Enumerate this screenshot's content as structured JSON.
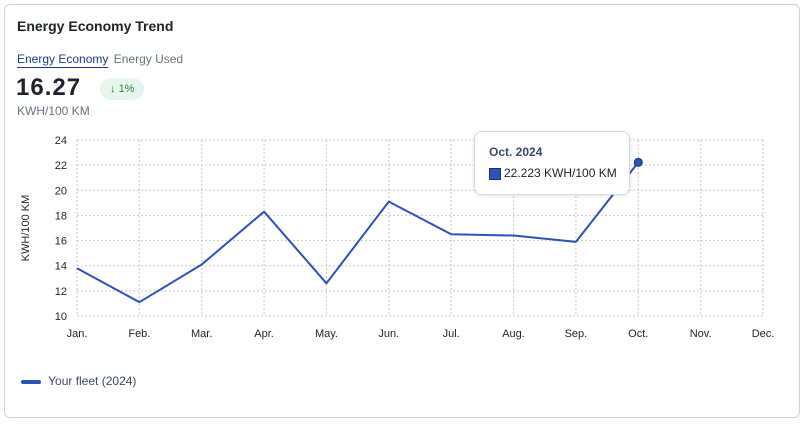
{
  "card": {
    "title": "Energy Economy Trend",
    "tab_active": "Energy Economy",
    "tab_other": "Energy Used",
    "big_value": "16.27",
    "change_arrow": "↓",
    "change_text": "1%",
    "unit": "KWH/100 KM"
  },
  "tooltip": {
    "title": "Oct. 2024",
    "value": "22.223 KWH/100 KM"
  },
  "colors": {
    "series": "#2d52b8",
    "badge_bg": "#e7f6ec",
    "badge_fg": "#2e7d43",
    "active_tab": "#1d3b8b"
  },
  "chart_data": {
    "type": "line",
    "ylabel": "KWH/100 KM",
    "xlabel": "",
    "ylim": [
      10,
      24
    ],
    "yticks": [
      10,
      12,
      14,
      16,
      18,
      20,
      22,
      24
    ],
    "categories": [
      "Jan.",
      "Feb.",
      "Mar.",
      "Apr.",
      "May.",
      "Jun.",
      "Jul.",
      "Aug.",
      "Sep.",
      "Oct.",
      "Nov.",
      "Dec."
    ],
    "grid": true,
    "legend_position": "bottom-left",
    "series": [
      {
        "name": "Your fleet (2024)",
        "values": [
          13.8,
          11.1,
          14.1,
          18.3,
          12.6,
          19.1,
          16.5,
          16.4,
          15.9,
          22.223,
          null,
          null
        ]
      }
    ],
    "highlight_index": 9
  }
}
